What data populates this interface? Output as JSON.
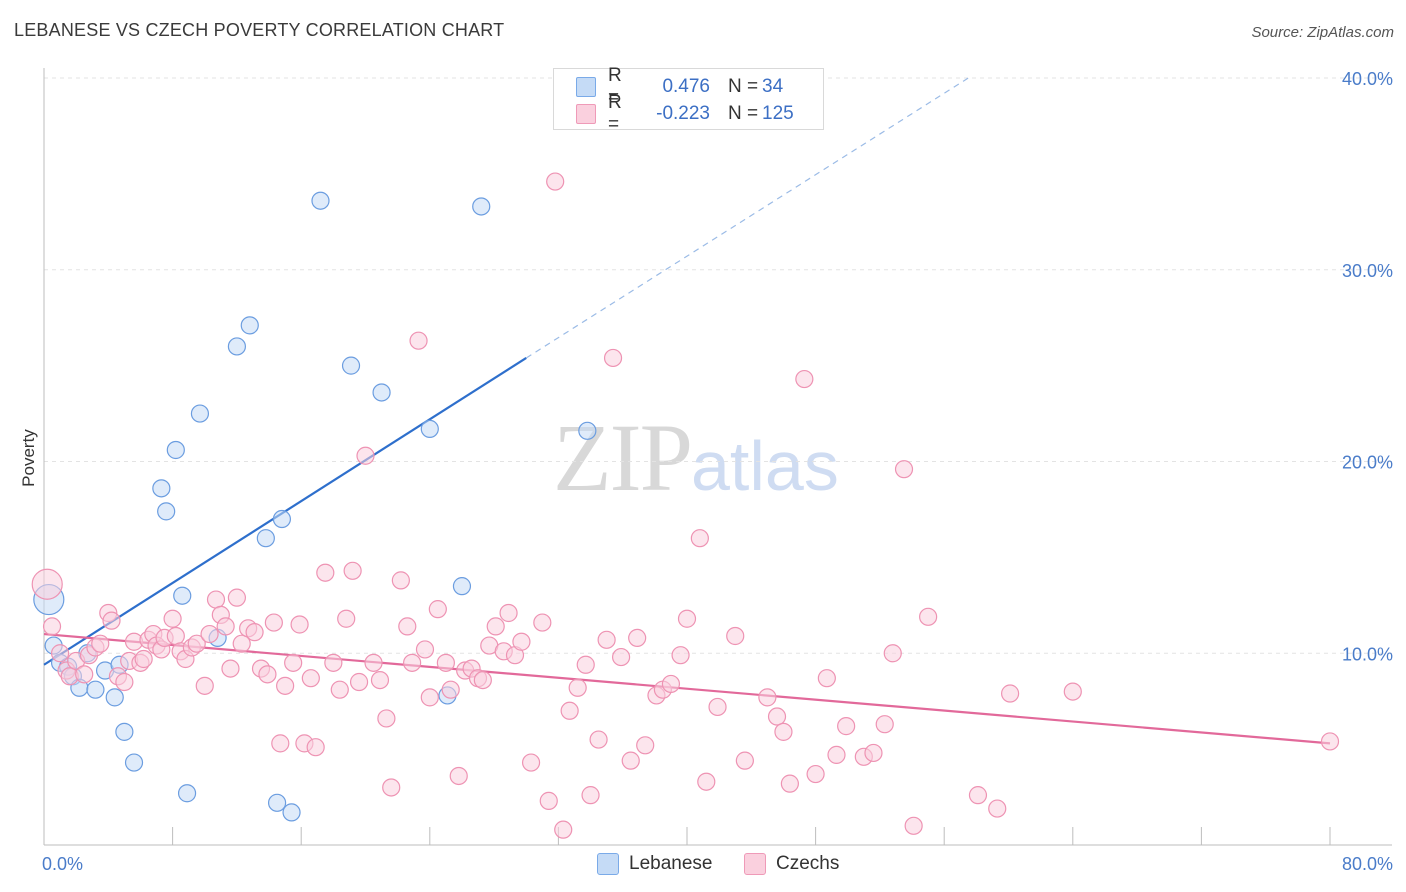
{
  "title": "LEBANESE VS CZECH POVERTY CORRELATION CHART",
  "source": "Source: ZipAtlas.com",
  "watermark": {
    "zip": "ZIP",
    "atlas": "atlas"
  },
  "legend": {
    "rows": [
      {
        "r_label": "R =",
        "r_value": "0.476",
        "n_label": "N =",
        "n_value": "34",
        "color": "#7aaae8",
        "fill": "#c5dbf6"
      },
      {
        "r_label": "R =",
        "r_value": "-0.223",
        "n_label": "N =",
        "n_value": "125",
        "color": "#ef9ab8",
        "fill": "#fad0de"
      }
    ]
  },
  "chart_data": {
    "type": "scatter",
    "ylabel": "Poverty",
    "xlim": [
      0,
      80
    ],
    "ylim": [
      0,
      40
    ],
    "x_ticks": [
      "0.0%",
      "80.0%"
    ],
    "y_ticks": [
      {
        "value": 10,
        "label": "10.0%"
      },
      {
        "value": 20,
        "label": "20.0%"
      },
      {
        "value": 30,
        "label": "30.0%"
      },
      {
        "value": 40,
        "label": "40.0%"
      }
    ],
    "grid": "horizontal dashed",
    "series": [
      {
        "name": "Lebanese",
        "color": "#6b9de0",
        "fill": "#c5dbf6",
        "trend": {
          "x0": 0,
          "y0": 9.4,
          "x1": 30,
          "y1": 25.4,
          "dashed_to_x": 57.5,
          "dashed_to_y": 40.0,
          "color": "#2e6fcc"
        },
        "points": [
          [
            0.3,
            12.8
          ],
          [
            0.6,
            10.4
          ],
          [
            1.0,
            9.5
          ],
          [
            1.5,
            9.3
          ],
          [
            1.8,
            8.8
          ],
          [
            2.2,
            8.2
          ],
          [
            2.7,
            10.0
          ],
          [
            3.2,
            8.1
          ],
          [
            3.8,
            9.1
          ],
          [
            4.4,
            7.7
          ],
          [
            4.7,
            9.4
          ],
          [
            5.0,
            5.9
          ],
          [
            5.6,
            4.3
          ],
          [
            7.3,
            18.6
          ],
          [
            7.6,
            17.4
          ],
          [
            8.2,
            20.6
          ],
          [
            8.6,
            13.0
          ],
          [
            8.9,
            2.7
          ],
          [
            9.7,
            22.5
          ],
          [
            10.8,
            10.8
          ],
          [
            12.0,
            26.0
          ],
          [
            12.8,
            27.1
          ],
          [
            13.8,
            16.0
          ],
          [
            14.5,
            2.2
          ],
          [
            14.8,
            17.0
          ],
          [
            15.4,
            1.7
          ],
          [
            17.2,
            33.6
          ],
          [
            19.1,
            25.0
          ],
          [
            21.0,
            23.6
          ],
          [
            24.0,
            21.7
          ],
          [
            25.1,
            7.8
          ],
          [
            26.0,
            13.5
          ],
          [
            27.2,
            33.3
          ],
          [
            33.8,
            21.6
          ]
        ]
      },
      {
        "name": "Czechs",
        "color": "#ee93b3",
        "fill": "#fad0de",
        "trend": {
          "x0": 0,
          "y0": 11.0,
          "x1": 80,
          "y1": 5.3,
          "color": "#e2699a"
        },
        "points": [
          [
            0.2,
            13.6
          ],
          [
            0.5,
            11.4
          ],
          [
            1.0,
            10.0
          ],
          [
            1.4,
            9.1
          ],
          [
            1.6,
            8.8
          ],
          [
            2.0,
            9.6
          ],
          [
            2.5,
            8.9
          ],
          [
            2.8,
            9.9
          ],
          [
            3.2,
            10.3
          ],
          [
            3.5,
            10.5
          ],
          [
            4.0,
            12.1
          ],
          [
            4.2,
            11.7
          ],
          [
            4.6,
            8.8
          ],
          [
            5.0,
            8.5
          ],
          [
            5.3,
            9.6
          ],
          [
            5.6,
            10.6
          ],
          [
            6.0,
            9.5
          ],
          [
            6.2,
            9.7
          ],
          [
            6.5,
            10.7
          ],
          [
            6.8,
            11.0
          ],
          [
            7.0,
            10.4
          ],
          [
            7.3,
            10.2
          ],
          [
            7.5,
            10.8
          ],
          [
            8.0,
            11.8
          ],
          [
            8.2,
            10.9
          ],
          [
            8.5,
            10.1
          ],
          [
            8.8,
            9.7
          ],
          [
            9.2,
            10.3
          ],
          [
            9.5,
            10.5
          ],
          [
            10.0,
            8.3
          ],
          [
            10.3,
            11.0
          ],
          [
            10.7,
            12.8
          ],
          [
            11.0,
            12.0
          ],
          [
            11.3,
            11.4
          ],
          [
            11.6,
            9.2
          ],
          [
            12.0,
            12.9
          ],
          [
            12.3,
            10.5
          ],
          [
            12.7,
            11.3
          ],
          [
            13.1,
            11.1
          ],
          [
            13.5,
            9.2
          ],
          [
            13.9,
            8.9
          ],
          [
            14.3,
            11.6
          ],
          [
            14.7,
            5.3
          ],
          [
            15.0,
            8.3
          ],
          [
            15.5,
            9.5
          ],
          [
            15.9,
            11.5
          ],
          [
            16.2,
            5.3
          ],
          [
            16.6,
            8.7
          ],
          [
            16.9,
            5.1
          ],
          [
            17.5,
            14.2
          ],
          [
            18.0,
            9.5
          ],
          [
            18.4,
            8.1
          ],
          [
            18.8,
            11.8
          ],
          [
            19.2,
            14.3
          ],
          [
            19.6,
            8.5
          ],
          [
            20.0,
            20.3
          ],
          [
            20.5,
            9.5
          ],
          [
            20.9,
            8.6
          ],
          [
            21.3,
            6.6
          ],
          [
            21.6,
            3.0
          ],
          [
            22.2,
            13.8
          ],
          [
            22.6,
            11.4
          ],
          [
            22.9,
            9.5
          ],
          [
            23.3,
            26.3
          ],
          [
            23.7,
            10.2
          ],
          [
            24.0,
            7.7
          ],
          [
            24.5,
            12.3
          ],
          [
            25.0,
            9.5
          ],
          [
            25.3,
            8.1
          ],
          [
            25.8,
            3.6
          ],
          [
            26.2,
            9.1
          ],
          [
            26.6,
            9.2
          ],
          [
            27.0,
            8.7
          ],
          [
            27.3,
            8.6
          ],
          [
            27.7,
            10.4
          ],
          [
            28.1,
            11.4
          ],
          [
            28.6,
            10.1
          ],
          [
            28.9,
            12.1
          ],
          [
            29.3,
            9.9
          ],
          [
            29.7,
            10.6
          ],
          [
            30.3,
            4.3
          ],
          [
            31.0,
            11.6
          ],
          [
            31.4,
            2.3
          ],
          [
            31.8,
            34.6
          ],
          [
            32.3,
            0.8
          ],
          [
            32.7,
            7.0
          ],
          [
            33.2,
            8.2
          ],
          [
            33.7,
            9.4
          ],
          [
            34.0,
            2.6
          ],
          [
            34.5,
            5.5
          ],
          [
            35.0,
            10.7
          ],
          [
            35.4,
            25.4
          ],
          [
            35.9,
            9.8
          ],
          [
            36.5,
            4.4
          ],
          [
            36.9,
            10.8
          ],
          [
            37.4,
            5.2
          ],
          [
            38.1,
            7.8
          ],
          [
            38.5,
            8.1
          ],
          [
            39.0,
            8.4
          ],
          [
            39.6,
            9.9
          ],
          [
            40.0,
            11.8
          ],
          [
            40.8,
            16.0
          ],
          [
            41.2,
            3.3
          ],
          [
            41.9,
            7.2
          ],
          [
            43.0,
            10.9
          ],
          [
            43.6,
            4.4
          ],
          [
            45.0,
            7.7
          ],
          [
            45.6,
            6.7
          ],
          [
            46.0,
            5.9
          ],
          [
            46.4,
            3.2
          ],
          [
            47.3,
            24.3
          ],
          [
            48.0,
            3.7
          ],
          [
            48.7,
            8.7
          ],
          [
            49.3,
            4.7
          ],
          [
            49.9,
            6.2
          ],
          [
            51.0,
            4.6
          ],
          [
            51.6,
            4.8
          ],
          [
            52.3,
            6.3
          ],
          [
            52.8,
            10.0
          ],
          [
            53.5,
            19.6
          ],
          [
            54.1,
            1.0
          ],
          [
            55.0,
            11.9
          ],
          [
            58.1,
            2.6
          ],
          [
            59.3,
            1.9
          ],
          [
            60.1,
            7.9
          ],
          [
            64.0,
            8.0
          ],
          [
            80.0,
            5.4
          ]
        ]
      }
    ]
  }
}
